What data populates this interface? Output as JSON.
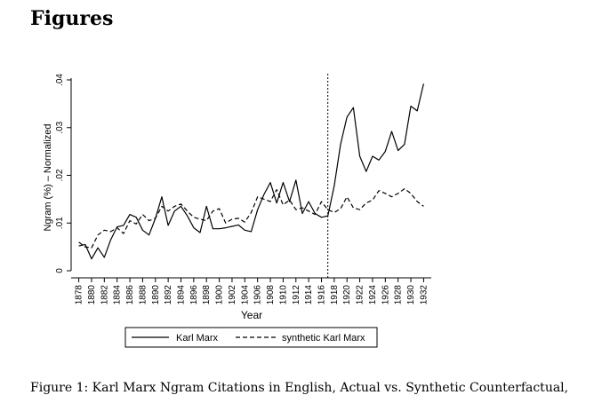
{
  "section_title": "Figures",
  "caption": "Figure 1:  Karl Marx Ngram Citations in English, Actual vs.  Synthetic Counterfactual,",
  "chart_data": {
    "type": "line",
    "title": "",
    "xlabel": "Year",
    "ylabel": "Ngram (%) – Normalized",
    "xlim": [
      1877.5,
      1932.5
    ],
    "ylim": [
      0,
      0.04
    ],
    "yticks": [
      0,
      0.01,
      0.02,
      0.03,
      0.04
    ],
    "ytick_labels": [
      "0",
      ".01",
      ".02",
      ".03",
      ".04"
    ],
    "xticks": [
      1878,
      1880,
      1882,
      1884,
      1886,
      1888,
      1890,
      1892,
      1894,
      1896,
      1898,
      1900,
      1902,
      1904,
      1906,
      1908,
      1910,
      1912,
      1914,
      1916,
      1918,
      1920,
      1922,
      1924,
      1926,
      1928,
      1930,
      1932
    ],
    "xtick_labels": [
      "1878",
      "1880",
      "1882",
      "1884",
      "1886",
      "1888",
      "1890",
      "1892",
      "1894",
      "1896",
      "1898",
      "1900",
      "1902",
      "1904",
      "1906",
      "1908",
      "1910",
      "1912",
      "1914",
      "1916",
      "1918",
      "1920",
      "1922",
      "1924",
      "1926",
      "1928",
      "1930",
      "1932"
    ],
    "vline_x": 1917,
    "x": [
      1878,
      1879,
      1880,
      1881,
      1882,
      1883,
      1884,
      1885,
      1886,
      1887,
      1888,
      1889,
      1890,
      1891,
      1892,
      1893,
      1894,
      1895,
      1896,
      1897,
      1898,
      1899,
      1900,
      1901,
      1902,
      1903,
      1904,
      1905,
      1906,
      1907,
      1908,
      1909,
      1910,
      1911,
      1912,
      1913,
      1914,
      1915,
      1916,
      1917,
      1918,
      1919,
      1920,
      1921,
      1922,
      1923,
      1924,
      1925,
      1926,
      1927,
      1928,
      1929,
      1930,
      1931,
      1932
    ],
    "series": [
      {
        "name": "Karl Marx",
        "style": "solid",
        "values": [
          0.0052,
          0.0055,
          0.0025,
          0.0048,
          0.0028,
          0.0065,
          0.0092,
          0.0095,
          0.0118,
          0.0112,
          0.0085,
          0.0075,
          0.011,
          0.0155,
          0.0095,
          0.0125,
          0.0135,
          0.0115,
          0.009,
          0.008,
          0.0135,
          0.0088,
          0.0088,
          0.009,
          0.0093,
          0.0096,
          0.0085,
          0.0082,
          0.0128,
          0.016,
          0.0185,
          0.0142,
          0.0185,
          0.0145,
          0.019,
          0.012,
          0.0145,
          0.012,
          0.0112,
          0.0115,
          0.0178,
          0.0265,
          0.0322,
          0.0342,
          0.024,
          0.0208,
          0.024,
          0.0232,
          0.025,
          0.0292,
          0.0252,
          0.0265,
          0.0345,
          0.0335,
          0.0392
        ]
      },
      {
        "name": "synthetic Karl Marx",
        "style": "dashed",
        "values": [
          0.006,
          0.005,
          0.0048,
          0.0075,
          0.0085,
          0.0082,
          0.009,
          0.0078,
          0.0105,
          0.0098,
          0.0118,
          0.0105,
          0.011,
          0.0135,
          0.0125,
          0.0135,
          0.014,
          0.0125,
          0.0112,
          0.0108,
          0.0105,
          0.0125,
          0.013,
          0.01,
          0.0108,
          0.011,
          0.0102,
          0.0122,
          0.0155,
          0.015,
          0.0145,
          0.017,
          0.0138,
          0.0148,
          0.0128,
          0.0132,
          0.0125,
          0.0118,
          0.0145,
          0.0128,
          0.0122,
          0.013,
          0.0155,
          0.0132,
          0.0128,
          0.0142,
          0.0148,
          0.0168,
          0.0162,
          0.0155,
          0.0162,
          0.0172,
          0.0162,
          0.0145,
          0.0135
        ]
      }
    ],
    "legend": [
      "Karl Marx",
      "synthetic Karl Marx"
    ],
    "legend_position": "bottom"
  }
}
